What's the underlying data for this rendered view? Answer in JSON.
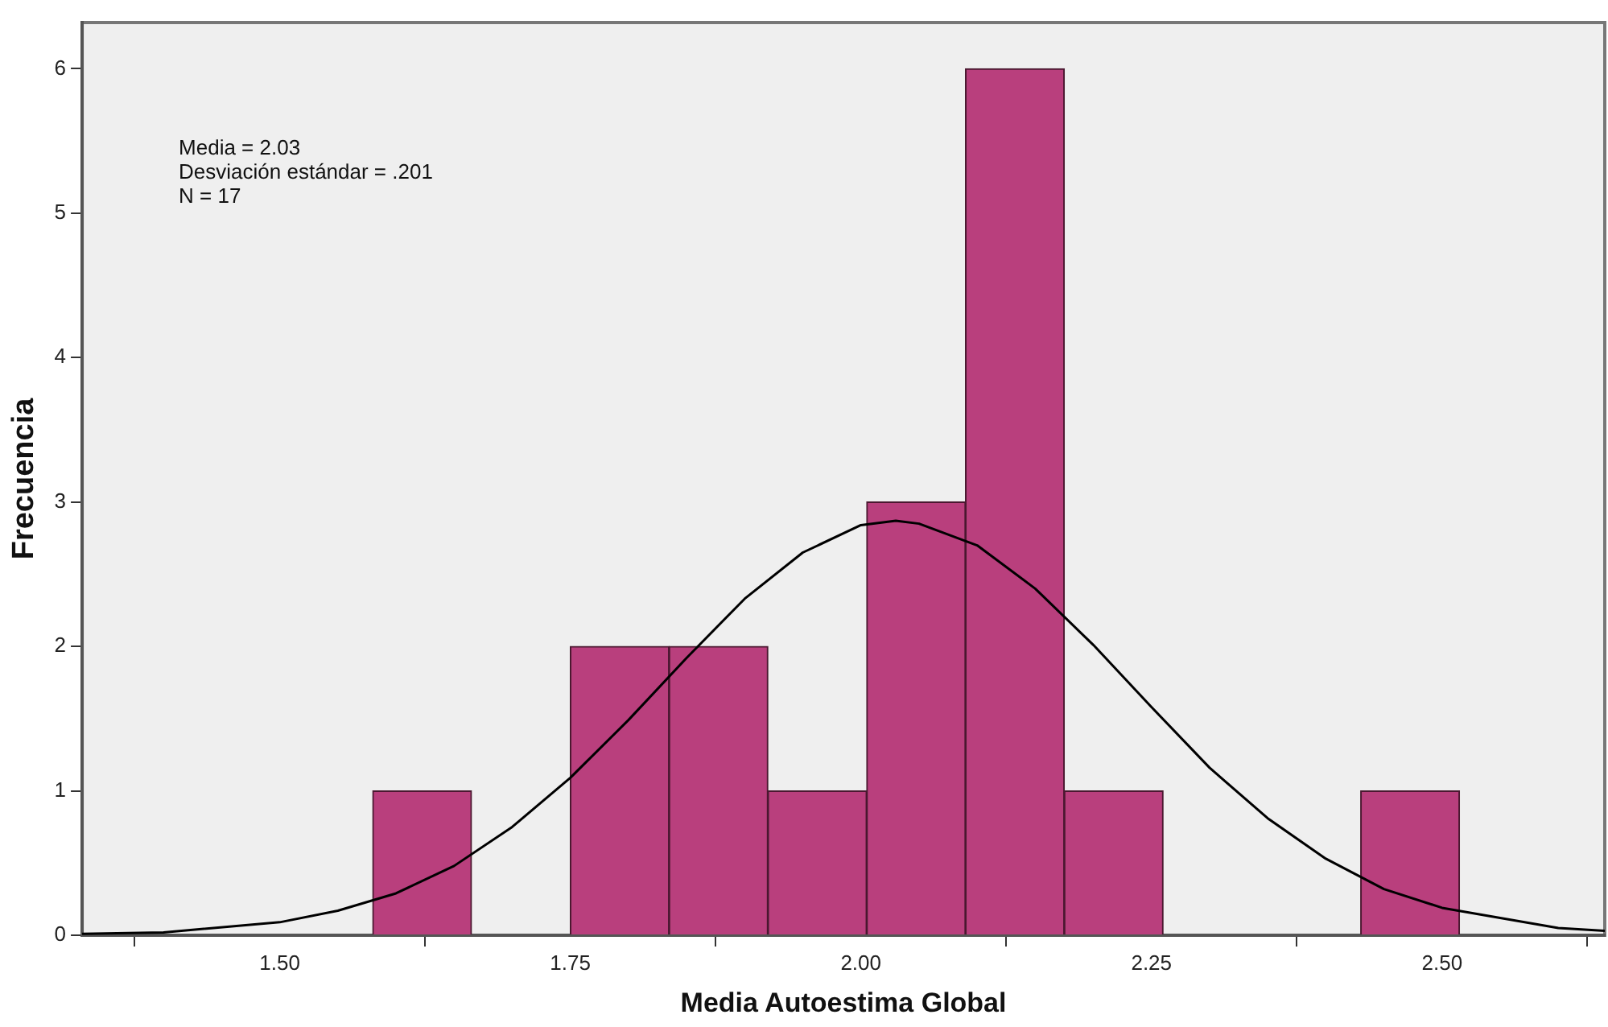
{
  "chart_data": {
    "type": "histogram",
    "xlabel": "Media Autoestima Global",
    "ylabel": "Frecuencia",
    "bins": [
      1.58,
      1.665,
      1.75,
      1.835,
      1.92,
      2.005,
      2.09,
      2.175,
      2.26,
      2.345,
      2.43,
      2.515
    ],
    "values": [
      1,
      0,
      2,
      2,
      1,
      3,
      6,
      1,
      0,
      0,
      1
    ],
    "color": "#b93f7d",
    "series": [
      {
        "type": "line",
        "color": "#000000",
        "x": [
          1.33,
          1.4,
          1.5,
          1.55,
          1.6,
          1.65,
          1.7,
          1.75,
          1.8,
          1.85,
          1.9,
          1.95,
          2.0,
          2.03,
          2.05,
          2.1,
          2.15,
          2.2,
          2.25,
          2.3,
          2.35,
          2.4,
          2.45,
          2.5,
          2.6,
          2.64
        ],
        "values": [
          0.01,
          0.02,
          0.09,
          0.17,
          0.29,
          0.48,
          0.75,
          1.09,
          1.49,
          1.92,
          2.33,
          2.65,
          2.84,
          2.87,
          2.85,
          2.7,
          2.4,
          2.01,
          1.58,
          1.16,
          0.81,
          0.53,
          0.32,
          0.19,
          0.05,
          0.03
        ]
      }
    ],
    "xlim": [
      1.33,
      2.64
    ],
    "xticks": [
      {
        "value": 1.5,
        "label": "1.50"
      },
      {
        "value": 1.75,
        "label": "1.75"
      },
      {
        "value": 2.0,
        "label": "2.00"
      },
      {
        "value": 2.25,
        "label": "2.25"
      },
      {
        "value": 2.5,
        "label": "2.50"
      }
    ],
    "ylim": [
      0,
      6.32
    ],
    "yticks": [
      0,
      1,
      2,
      3,
      4,
      5,
      6
    ],
    "annotations": [
      "Media = 2.03",
      "Desviación estándar = .201",
      "N = 17"
    ],
    "grid": false,
    "legend": false,
    "marker": "none",
    "line_style": "solid"
  }
}
